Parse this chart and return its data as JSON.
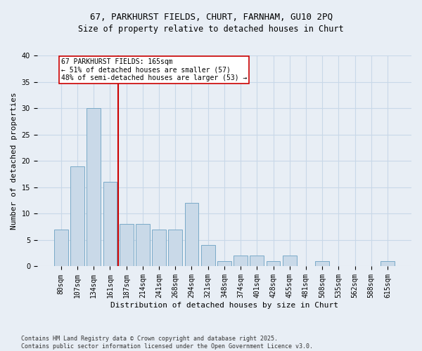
{
  "title_line1": "67, PARKHURST FIELDS, CHURT, FARNHAM, GU10 2PQ",
  "title_line2": "Size of property relative to detached houses in Churt",
  "xlabel": "Distribution of detached houses by size in Churt",
  "ylabel": "Number of detached properties",
  "categories": [
    "80sqm",
    "107sqm",
    "134sqm",
    "161sqm",
    "187sqm",
    "214sqm",
    "241sqm",
    "268sqm",
    "294sqm",
    "321sqm",
    "348sqm",
    "374sqm",
    "401sqm",
    "428sqm",
    "455sqm",
    "481sqm",
    "508sqm",
    "535sqm",
    "562sqm",
    "588sqm",
    "615sqm"
  ],
  "values": [
    7,
    19,
    30,
    16,
    8,
    8,
    7,
    7,
    12,
    4,
    1,
    2,
    2,
    1,
    2,
    0,
    1,
    0,
    0,
    0,
    1
  ],
  "bar_color": "#c9d9e8",
  "bar_edge_color": "#7aaac8",
  "vline_bar_index": 3,
  "vline_color": "#cc0000",
  "annotation_text": "67 PARKHURST FIELDS: 165sqm\n← 51% of detached houses are smaller (57)\n48% of semi-detached houses are larger (53) →",
  "annotation_box_color": "#ffffff",
  "annotation_box_edge": "#cc0000",
  "grid_color": "#c8d8e8",
  "background_color": "#e8eef5",
  "footer_text": "Contains HM Land Registry data © Crown copyright and database right 2025.\nContains public sector information licensed under the Open Government Licence v3.0.",
  "ylim": [
    0,
    40
  ],
  "yticks": [
    0,
    5,
    10,
    15,
    20,
    25,
    30,
    35,
    40
  ],
  "title_fontsize": 9,
  "subtitle_fontsize": 8.5,
  "xlabel_fontsize": 8,
  "ylabel_fontsize": 8,
  "tick_fontsize": 7,
  "annot_fontsize": 7,
  "footer_fontsize": 6
}
